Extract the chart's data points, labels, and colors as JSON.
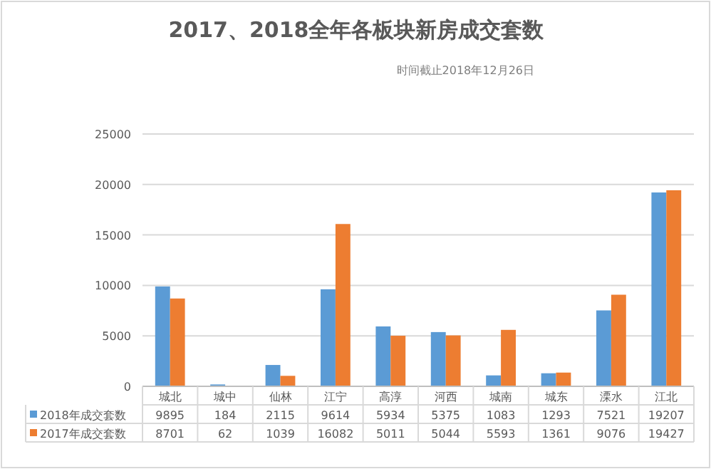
{
  "chart_data": {
    "type": "bar",
    "title": "2017、2018全年各板块新房成交套数",
    "annotations": [
      "时间截止2018年12月26日"
    ],
    "categories": [
      "城北",
      "城中",
      "仙林",
      "江宁",
      "高淳",
      "河西",
      "城南",
      "城东",
      "溧水",
      "江北"
    ],
    "series": [
      {
        "name": "2018年成交套数",
        "color": "#5b9bd5",
        "values": [
          9895,
          184,
          2115,
          9614,
          5934,
          5375,
          1083,
          1293,
          7521,
          19207
        ]
      },
      {
        "name": "2017年成交套数",
        "color": "#ed7d31",
        "values": [
          8701,
          62,
          1039,
          16082,
          5011,
          5044,
          5593,
          1361,
          9076,
          19427
        ]
      }
    ],
    "ylim": [
      0,
      25000
    ],
    "yticks": [
      0,
      5000,
      10000,
      15000,
      20000,
      25000
    ],
    "grid": "y",
    "data_labels": true,
    "legend": "bottom"
  }
}
